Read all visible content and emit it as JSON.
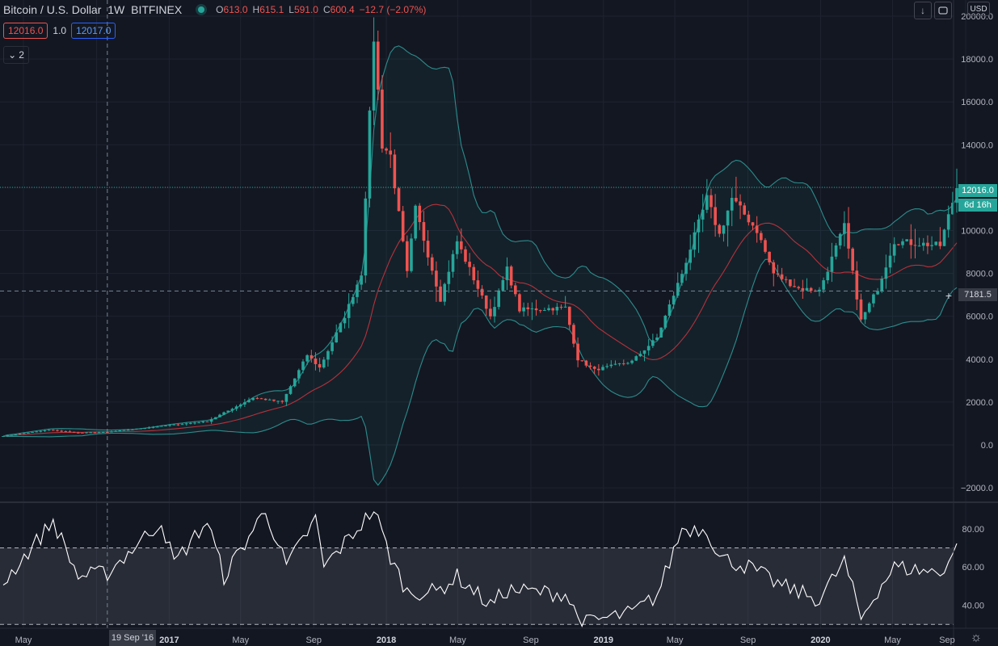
{
  "legend": {
    "title": "Bitcoin / U.S. Dollar",
    "interval": "1W",
    "exchange": "BITFINEX",
    "open_label": "O",
    "open": "613.0",
    "high_label": "H",
    "high": "615.1",
    "low_label": "L",
    "low": "591.0",
    "close_label": "C",
    "close": "600.4",
    "change": "−12.7 (−2.07%)"
  },
  "trade": {
    "sell": "12016.0",
    "spread": "1.0",
    "buy": "12017.0"
  },
  "collapse": {
    "count": "2",
    "icon": "chevron-down-icon"
  },
  "toolbar": {
    "currency": "USD",
    "scroll_icon": "arrow-down-icon",
    "fullscreen_icon": "maximize-icon",
    "settings_icon": "gear-icon"
  },
  "price_axis": {
    "ticks": [
      "20000.0",
      "18000.0",
      "16000.0",
      "14000.0",
      "12000.0",
      "10000.0",
      "8000.0",
      "6000.0",
      "4000.0",
      "2000.0",
      "0.0",
      "−2000.0"
    ],
    "last_price": "12016.0",
    "countdown": "6d 16h",
    "crosshair_price": "7181.5"
  },
  "rsi_axis": {
    "ticks": [
      "80.00",
      "60.00",
      "40.00"
    ]
  },
  "time_axis": {
    "labels": [
      "May",
      "2017",
      "May",
      "Sep",
      "2018",
      "May",
      "Sep",
      "2019",
      "May",
      "Sep",
      "2020",
      "May",
      "Sep"
    ],
    "crosshair_date": "19 Sep '16"
  },
  "colors": {
    "background": "#131722",
    "up": "#26a69a",
    "down": "#ef5350",
    "bands": "#2b8c8c",
    "basis": "#b7313b",
    "rsi_line": "#ffffff"
  },
  "chart_data": [
    {
      "type": "candlestick",
      "title": "Bitcoin / U.S. Dollar",
      "interval": "1W",
      "x_range": [
        "2016-03-28",
        "2020-08-17"
      ],
      "ylim": [
        -2600,
        20000
      ],
      "grid": true,
      "overlays": [
        "Bollinger Bands"
      ],
      "anchor_points": [
        {
          "t": "2016-03-28",
          "close": 420
        },
        {
          "t": "2016-06-13",
          "close": 700
        },
        {
          "t": "2016-08-01",
          "close": 570
        },
        {
          "t": "2016-09-19",
          "close": 600
        },
        {
          "t": "2016-12-26",
          "close": 900
        },
        {
          "t": "2017-03-06",
          "close": 1100
        },
        {
          "t": "2017-05-22",
          "close": 2200
        },
        {
          "t": "2017-07-10",
          "close": 2000
        },
        {
          "t": "2017-08-21",
          "close": 4200
        },
        {
          "t": "2017-09-11",
          "close": 3600
        },
        {
          "t": "2017-10-23",
          "close": 6000
        },
        {
          "t": "2017-11-20",
          "close": 8000
        },
        {
          "t": "2017-12-11",
          "close": 19000
        },
        {
          "t": "2017-12-25",
          "close": 14000
        },
        {
          "t": "2018-01-08",
          "close": 13500
        },
        {
          "t": "2018-02-05",
          "close": 8000
        },
        {
          "t": "2018-02-19",
          "close": 11000
        },
        {
          "t": "2018-04-02",
          "close": 6800
        },
        {
          "t": "2018-04-30",
          "close": 9500
        },
        {
          "t": "2018-06-25",
          "close": 6000
        },
        {
          "t": "2018-07-23",
          "close": 8200
        },
        {
          "t": "2018-08-13",
          "close": 6300
        },
        {
          "t": "2018-10-29",
          "close": 6400
        },
        {
          "t": "2018-11-19",
          "close": 4000
        },
        {
          "t": "2018-12-17",
          "close": 3500
        },
        {
          "t": "2019-02-18",
          "close": 3900
        },
        {
          "t": "2019-04-01",
          "close": 5000
        },
        {
          "t": "2019-05-13",
          "close": 8000
        },
        {
          "t": "2019-06-24",
          "close": 11500
        },
        {
          "t": "2019-07-15",
          "close": 9800
        },
        {
          "t": "2019-08-05",
          "close": 11500
        },
        {
          "t": "2019-09-16",
          "close": 10000
        },
        {
          "t": "2019-10-14",
          "close": 8000
        },
        {
          "t": "2019-11-25",
          "close": 7300
        },
        {
          "t": "2019-12-30",
          "close": 7200
        },
        {
          "t": "2020-02-10",
          "close": 10200
        },
        {
          "t": "2020-03-09",
          "close": 5800
        },
        {
          "t": "2020-04-06",
          "close": 7300
        },
        {
          "t": "2020-05-04",
          "close": 9500
        },
        {
          "t": "2020-07-20",
          "close": 9300
        },
        {
          "t": "2020-08-17",
          "close": 12016
        }
      ]
    },
    {
      "type": "line",
      "title": "RSI",
      "ylim": [
        28,
        93
      ],
      "guides": [
        70,
        30
      ],
      "anchor_points": [
        {
          "t": "2016-03-28",
          "v": 52
        },
        {
          "t": "2016-06-20",
          "v": 84
        },
        {
          "t": "2016-08-01",
          "v": 55
        },
        {
          "t": "2016-09-19",
          "v": 57
        },
        {
          "t": "2016-12-19",
          "v": 84
        },
        {
          "t": "2017-01-09",
          "v": 62
        },
        {
          "t": "2017-03-06",
          "v": 84
        },
        {
          "t": "2017-04-03",
          "v": 55
        },
        {
          "t": "2017-06-12",
          "v": 90
        },
        {
          "t": "2017-07-17",
          "v": 60
        },
        {
          "t": "2017-09-04",
          "v": 85
        },
        {
          "t": "2017-09-18",
          "v": 60
        },
        {
          "t": "2017-12-11",
          "v": 90
        },
        {
          "t": "2018-01-08",
          "v": 65
        },
        {
          "t": "2018-02-05",
          "v": 47
        },
        {
          "t": "2018-03-26",
          "v": 47
        },
        {
          "t": "2018-04-30",
          "v": 55
        },
        {
          "t": "2018-06-25",
          "v": 40
        },
        {
          "t": "2018-07-23",
          "v": 48
        },
        {
          "t": "2018-10-29",
          "v": 46
        },
        {
          "t": "2018-11-26",
          "v": 30
        },
        {
          "t": "2018-12-17",
          "v": 32
        },
        {
          "t": "2019-02-18",
          "v": 36
        },
        {
          "t": "2019-04-01",
          "v": 45
        },
        {
          "t": "2019-05-13",
          "v": 80
        },
        {
          "t": "2019-06-24",
          "v": 80
        },
        {
          "t": "2019-07-15",
          "v": 65
        },
        {
          "t": "2019-09-02",
          "v": 60
        },
        {
          "t": "2019-10-28",
          "v": 50
        },
        {
          "t": "2019-12-30",
          "v": 43
        },
        {
          "t": "2020-02-10",
          "v": 63
        },
        {
          "t": "2020-03-09",
          "v": 33
        },
        {
          "t": "2020-04-06",
          "v": 48
        },
        {
          "t": "2020-05-04",
          "v": 60
        },
        {
          "t": "2020-07-20",
          "v": 57
        },
        {
          "t": "2020-08-17",
          "v": 70
        }
      ]
    }
  ]
}
